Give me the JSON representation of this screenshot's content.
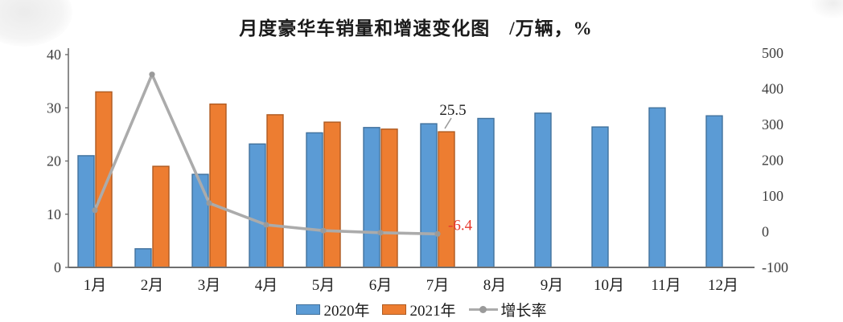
{
  "title": "月度豪华车销量和增速变化图　/万辆，%",
  "legend": {
    "items": [
      {
        "label": "2020年",
        "marker": "bar",
        "color": "#5B9BD5"
      },
      {
        "label": "2021年",
        "marker": "bar",
        "color": "#ED7D31"
      },
      {
        "label": "增长率",
        "marker": "line",
        "color": "#ABABAB"
      }
    ]
  },
  "chart_data": {
    "type": "bar",
    "title": "月度豪华车销量和增速变化图　/万辆，%",
    "categories": [
      "1月",
      "2月",
      "3月",
      "4月",
      "5月",
      "6月",
      "7月",
      "8月",
      "9月",
      "10月",
      "11月",
      "12月"
    ],
    "series": [
      {
        "name": "2020年",
        "type": "bar",
        "axis": "left",
        "color": "#5B9BD5",
        "border": "#41719C",
        "values": [
          21,
          3.5,
          17.5,
          23.2,
          25.3,
          26.3,
          27,
          28,
          29,
          26.4,
          30,
          28.5
        ]
      },
      {
        "name": "2021年",
        "type": "bar",
        "axis": "left",
        "color": "#ED7D31",
        "border": "#AE5A21",
        "values": [
          33,
          19,
          30.7,
          28.7,
          27.3,
          26,
          25.5,
          null,
          null,
          null,
          null,
          null
        ]
      },
      {
        "name": "增长率",
        "type": "line",
        "axis": "right",
        "color": "#ABABAB",
        "marker_color": "#9a9a9a",
        "values": [
          60,
          440,
          80,
          19,
          3,
          -3,
          -6.4,
          null,
          null,
          null,
          null,
          null
        ]
      }
    ],
    "left_axis": {
      "min": 0,
      "max": 40,
      "ticks": [
        0,
        10,
        20,
        30,
        40
      ]
    },
    "right_axis": {
      "min": -100,
      "max": 500,
      "ticks": [
        -100,
        0,
        100,
        200,
        300,
        400,
        500
      ]
    },
    "grid": false,
    "legend_position": "bottom",
    "annotations": [
      {
        "text": "25.5",
        "color": "#1a1a1a",
        "month": "7月",
        "series": "2021年"
      },
      {
        "text": "-6.4",
        "color": "#E8392D",
        "month": "7月",
        "series": "增长率"
      }
    ]
  }
}
